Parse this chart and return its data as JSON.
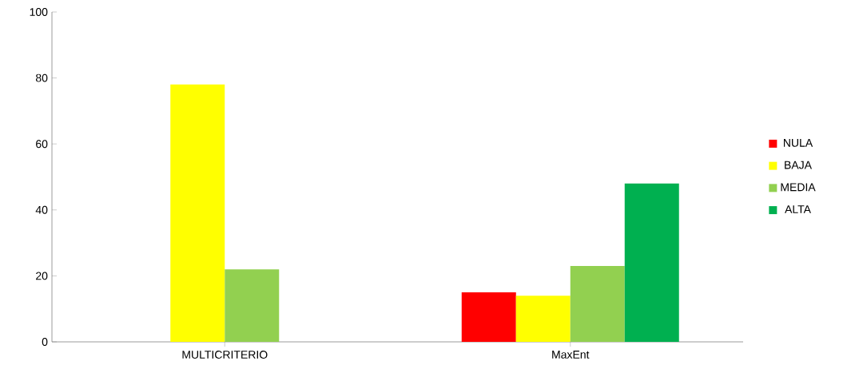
{
  "chart_data": {
    "type": "bar",
    "categories": [
      "MULTICRITERIO",
      "MaxEnt"
    ],
    "series": [
      {
        "name": "NULA",
        "color": "#ff0000",
        "values": [
          0,
          15
        ]
      },
      {
        "name": "BAJA",
        "color": "#ffff00",
        "values": [
          78,
          14
        ]
      },
      {
        "name": "MEDIA",
        "color": "#92d050",
        "values": [
          22,
          23
        ]
      },
      {
        "name": "ALTA",
        "color": "#00b050",
        "values": [
          0,
          48
        ]
      }
    ],
    "ylim": [
      0,
      100
    ],
    "yticks": [
      0,
      20,
      40,
      60,
      80,
      100
    ],
    "grid": false,
    "legend": "right"
  }
}
